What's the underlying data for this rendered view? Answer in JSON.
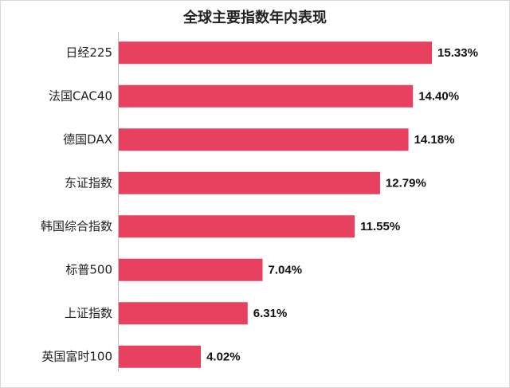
{
  "chart_data": {
    "type": "bar",
    "orientation": "horizontal",
    "title": "全球主要指数年内表现",
    "categories": [
      "日经225",
      "法国CAC40",
      "德国DAX",
      "东证指数",
      "韩国综合指数",
      "标普500",
      "上证指数",
      "英国富时100"
    ],
    "values": [
      15.33,
      14.4,
      14.18,
      12.79,
      11.55,
      7.04,
      6.31,
      4.02
    ],
    "value_labels": [
      "15.33%",
      "14.40%",
      "14.18%",
      "12.79%",
      "11.55%",
      "7.04%",
      "6.31%",
      "4.02%"
    ],
    "color": "#e8405f"
  }
}
